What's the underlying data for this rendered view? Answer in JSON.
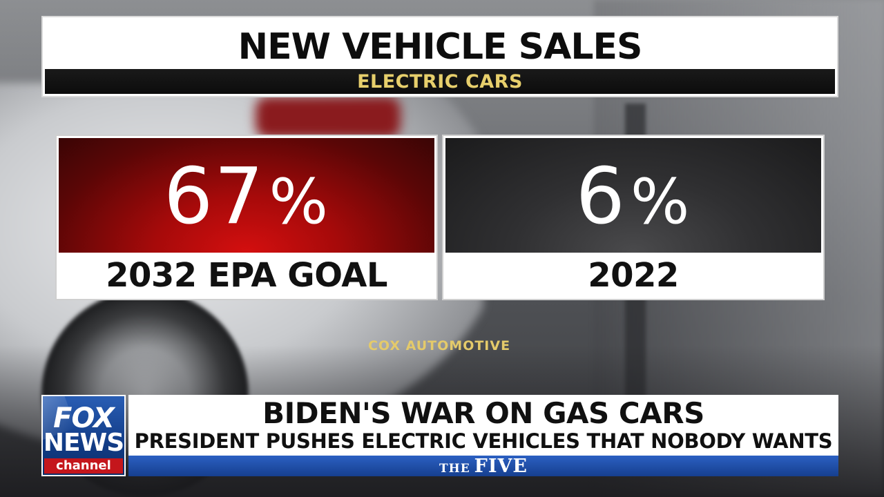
{
  "graphic": {
    "title": "NEW VEHICLE SALES",
    "subtitle": "ELECTRIC CARS",
    "stats": [
      {
        "value": "67",
        "unit": "%",
        "label": "2032 EPA GOAL",
        "color": "#b00b0b"
      },
      {
        "value": "6",
        "unit": "%",
        "label": "2022",
        "color": "#262628"
      }
    ],
    "source": "COX AUTOMOTIVE"
  },
  "lower_third": {
    "logo": {
      "line1": "FOX",
      "line2": "NEWS",
      "line3": "channel"
    },
    "headline": "BIDEN'S WAR ON GAS CARS",
    "subheadline": "PRESIDENT PUSHES ELECTRIC VEHICLES THAT NOBODY WANTS",
    "show": {
      "prefix": "THE",
      "name": "FIVE"
    }
  },
  "colors": {
    "accent_gold": "#e4ca6a",
    "fox_blue": "#1a4aa0",
    "fox_red": "#c4161c"
  }
}
